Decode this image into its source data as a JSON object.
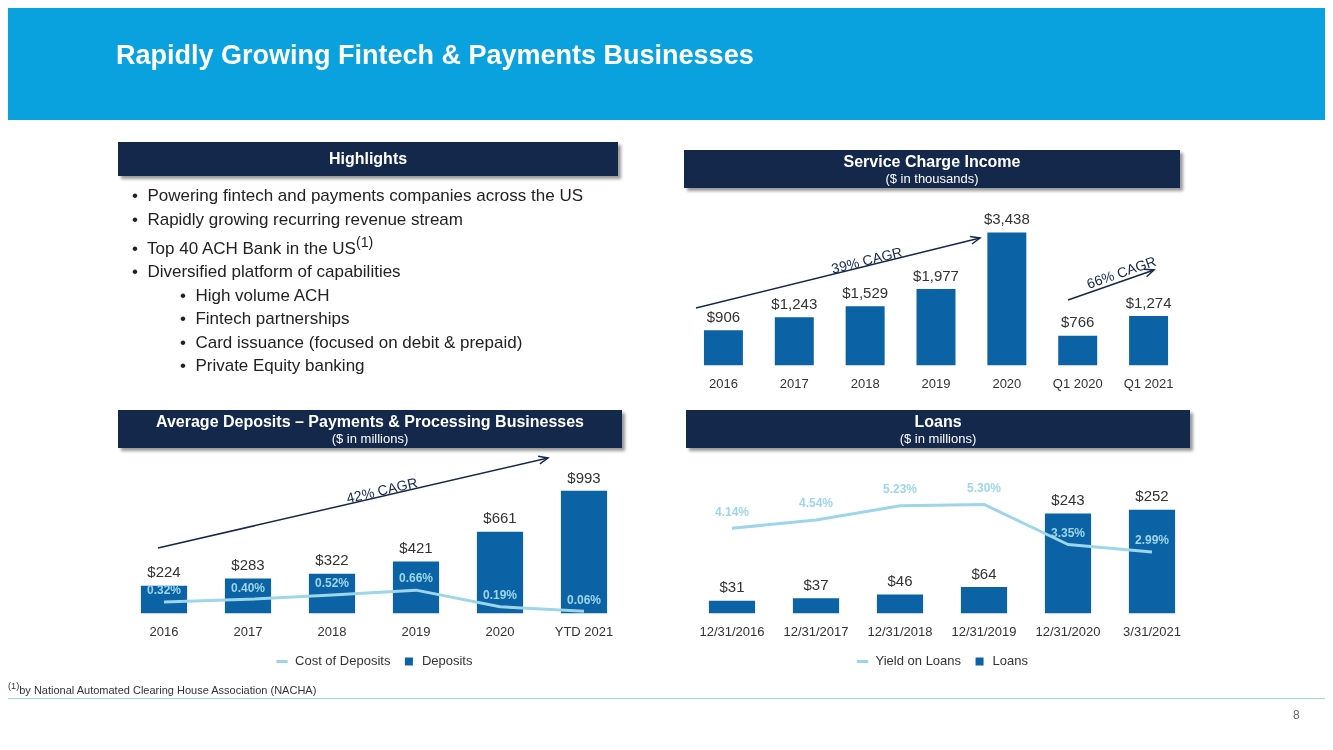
{
  "chart_data": [
    {
      "type": "other",
      "title": "Rapidly Growing Fintech & Payments Businesses",
      "annotations": [
        "$^{(1)}$by National Automated Clearing House Association (NACHA)",
        "8"
      ]
    },
    {
      "type": "other",
      "title": "Highlights",
      "annotations": [
        "•  Powering fintech and payments companies across the US",
        "•  Rapidly growing recurring revenue stream",
        "•  Top 40 ACH Bank in the US$^{(1)}$",
        "•  Diversified platform of capabilities",
        "•  High volume ACH",
        "•  Fintech partnerships",
        "•  Card issuance (focused on debit & prepaid)",
        "•  Private Equity banking"
      ]
    },
    {
      "type": "bar",
      "title": "Service Charge Income",
      "subtitle": "($ in thousands)",
      "categories": [
        "2016",
        "2017",
        "2018",
        "2019",
        "2020",
        "Q1 2020",
        "Q1 2021"
      ],
      "tick_labels": "x",
      "legend": false,
      "annotations": [
        "39% CAGR",
        "66% CAGR"
      ],
      "series": [
        {
          "color": "#0b62a4",
          "values": [
            906,
            1243,
            1529,
            1977,
            3438,
            766,
            1274
          ],
          "value_labels": [
            "$906",
            "$1,243",
            "$1,529",
            "$1,977",
            "$3,438",
            "$766",
            "$1,274"
          ]
        }
      ]
    },
    {
      "type": "bar",
      "title": "Average Deposits – Payments & Processing Businesses",
      "subtitle": "($ in millions)",
      "categories": [
        "2016",
        "2017",
        "2018",
        "2019",
        "2020",
        "YTD 2021"
      ],
      "tick_labels": "x",
      "legend": "bottom",
      "marker": "none",
      "annotations": [
        "42% CAGR"
      ],
      "series": [
        {
          "name": "Deposits",
          "color": "#0b62a4",
          "values": [
            224,
            283,
            322,
            421,
            661,
            993
          ],
          "value_labels": [
            "$224",
            "$283",
            "$322",
            "$421",
            "$661",
            "$993"
          ]
        },
        {
          "name": "Cost of Deposits",
          "type": "line",
          "axis": "y2",
          "color": "#9dd6ea",
          "values": [
            0.32,
            0.4,
            0.52,
            0.66,
            0.19,
            0.06
          ],
          "value_labels": [
            "0.32%",
            "0.40%",
            "0.52%",
            "0.66%",
            "0.19%",
            "0.06%"
          ]
        }
      ]
    },
    {
      "type": "bar",
      "title": "Loans",
      "subtitle": "($ in millions)",
      "categories": [
        "12/31/2016",
        "12/31/2017",
        "12/31/2018",
        "12/31/2019",
        "12/31/2020",
        "3/31/2021"
      ],
      "tick_labels": "x",
      "legend": "bottom",
      "marker": "none",
      "series": [
        {
          "name": "Loans",
          "color": "#0b62a4",
          "values": [
            31,
            37,
            46,
            64,
            243,
            252
          ],
          "value_labels": [
            "$31",
            "$37",
            "$46",
            "$64",
            "$243",
            "$252"
          ]
        },
        {
          "name": "Yield on Loans",
          "type": "line",
          "axis": "y2",
          "color": "#9dd6ea",
          "values": [
            4.14,
            4.54,
            5.23,
            5.3,
            3.35,
            2.99
          ],
          "value_labels": [
            "4.14%",
            "4.54%",
            "5.23%",
            "5.30%",
            "3.35%",
            "2.99%"
          ]
        }
      ]
    }
  ]
}
